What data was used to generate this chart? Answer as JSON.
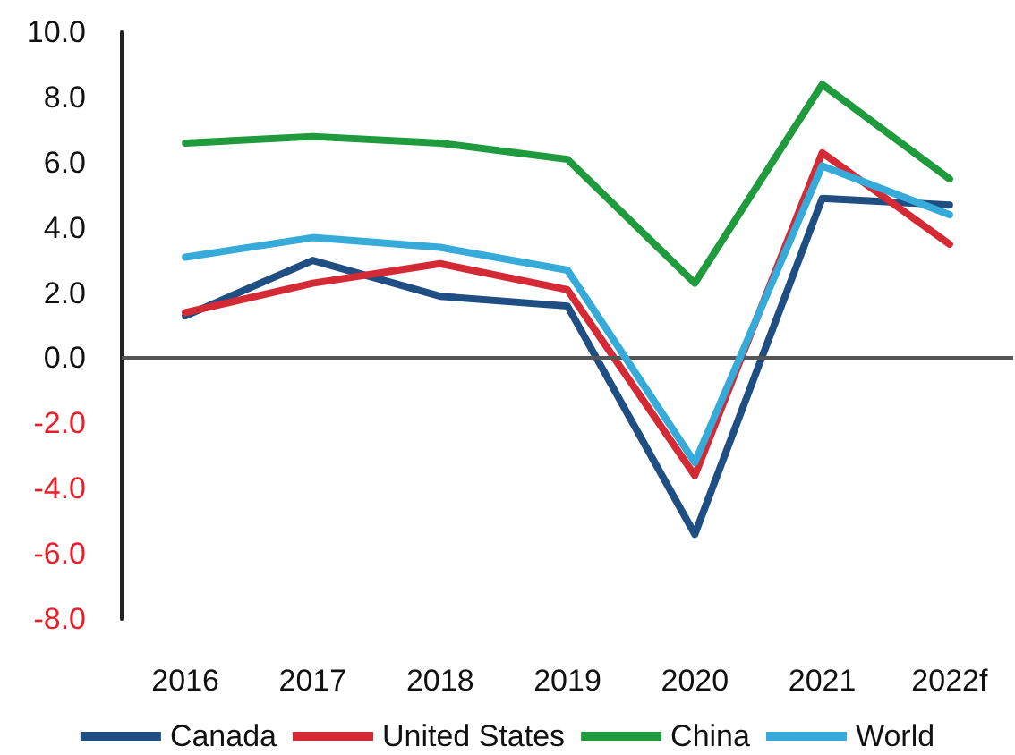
{
  "chart_data": {
    "type": "line",
    "categories": [
      "2016",
      "2017",
      "2018",
      "2019",
      "2020",
      "2021",
      "2022f"
    ],
    "series": [
      {
        "name": "Canada",
        "color": "#1f4e83",
        "values": [
          1.3,
          3.0,
          1.9,
          1.6,
          -5.4,
          4.9,
          4.7
        ]
      },
      {
        "name": "United States",
        "color": "#d42a35",
        "values": [
          1.4,
          2.3,
          2.9,
          2.1,
          -3.6,
          6.3,
          3.5
        ]
      },
      {
        "name": "China",
        "color": "#1f9a3c",
        "values": [
          6.6,
          6.8,
          6.6,
          6.1,
          2.3,
          8.4,
          5.5
        ]
      },
      {
        "name": "World",
        "color": "#36aad8",
        "values": [
          3.1,
          3.7,
          3.4,
          2.7,
          -3.2,
          5.9,
          4.4
        ]
      }
    ],
    "ylim": [
      -8,
      10
    ],
    "yticks": [
      {
        "value": -8,
        "label": "-8.0"
      },
      {
        "value": -6,
        "label": "-6.0"
      },
      {
        "value": -4,
        "label": "-4.0"
      },
      {
        "value": -2,
        "label": "-2.0"
      },
      {
        "value": 0,
        "label": "0.0"
      },
      {
        "value": 2,
        "label": "2.0"
      },
      {
        "value": 4,
        "label": "4.0"
      },
      {
        "value": 6,
        "label": "6.0"
      },
      {
        "value": 8,
        "label": "8.0"
      },
      {
        "value": 10,
        "label": "10.0"
      }
    ],
    "ref_lines": [
      {
        "axis": "y",
        "value": 0,
        "color": "#555555"
      }
    ],
    "grid": false,
    "legend": "bottom",
    "marker": "none",
    "line_style": "solid"
  }
}
